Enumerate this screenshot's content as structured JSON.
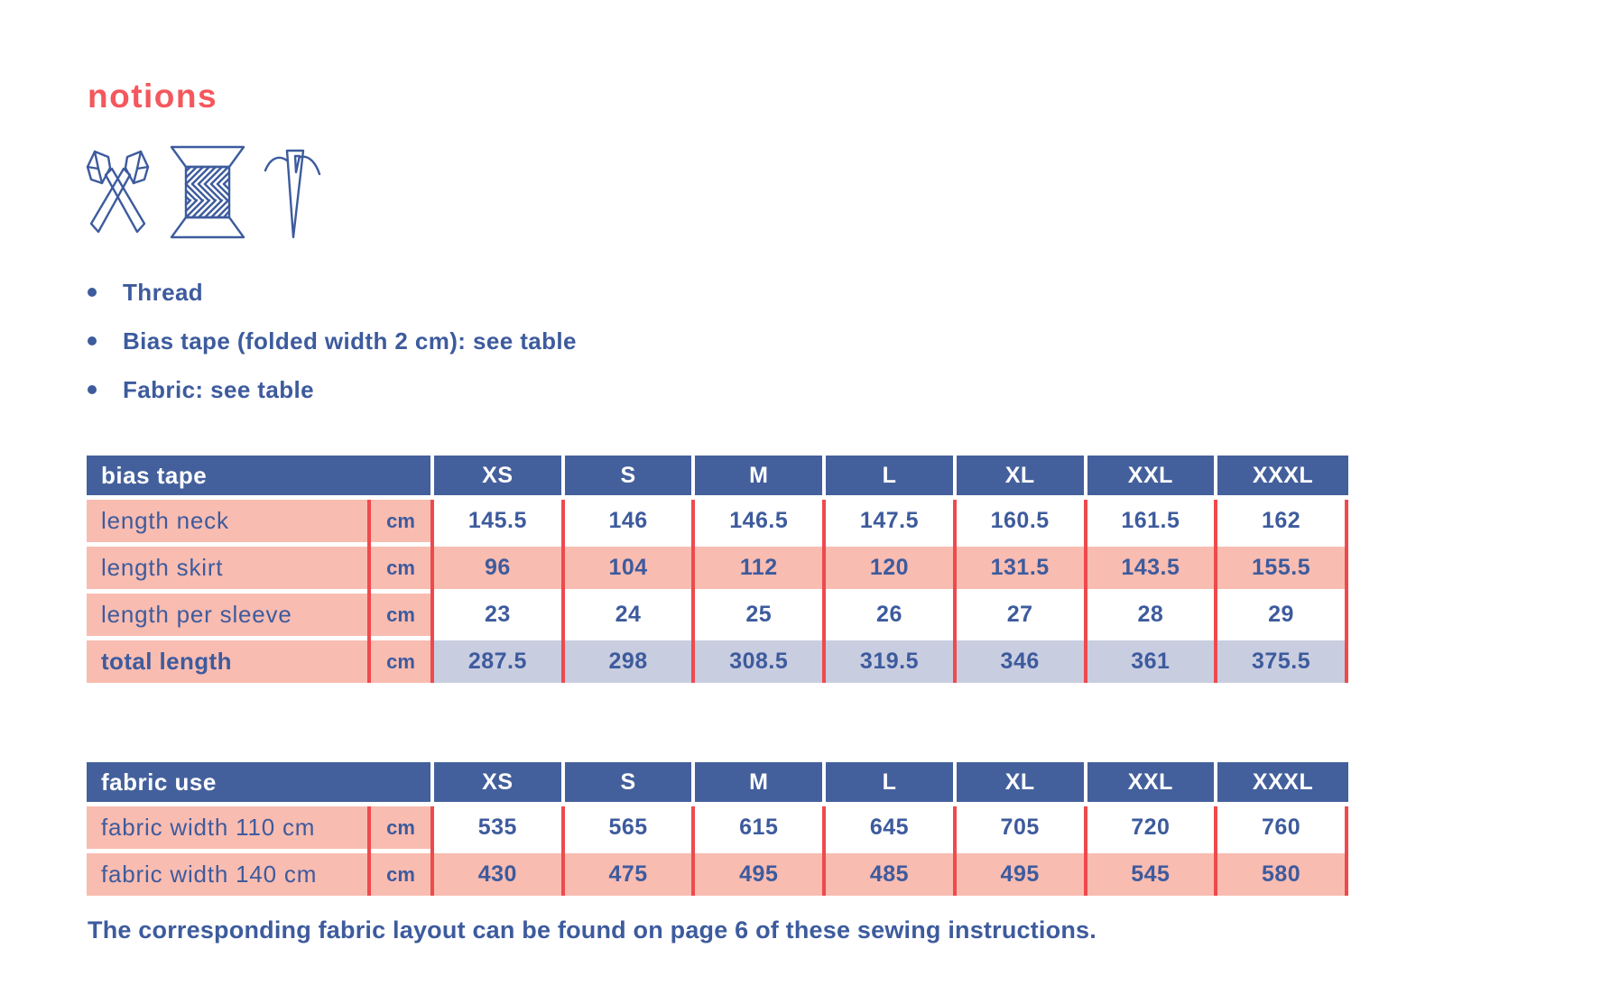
{
  "page": {
    "title": "notions",
    "bullets": [
      "Thread",
      "Bias tape (folded width 2 cm): see table",
      "Fabric: see table"
    ],
    "footer": "The corresponding fabric layout can be found on page 6 of these sewing instructions."
  },
  "icons": [
    {
      "name": "scissors-icon"
    },
    {
      "name": "thread-spool-icon"
    },
    {
      "name": "needle-thread-icon"
    }
  ],
  "colors": {
    "heading_coral": "#f4575c",
    "table_header_blue": "#44609c",
    "text_blue": "#3d5b9d",
    "row_pink": "#f9bcb1",
    "total_row_lavender": "#c9cde0",
    "divider_red": "#ee4a4e"
  },
  "tables": [
    {
      "title": "bias tape",
      "sizes": [
        "XS",
        "S",
        "M",
        "L",
        "XL",
        "XXL",
        "XXXL"
      ],
      "rows": [
        {
          "label": "length neck",
          "unit": "cm",
          "highlight": "plain",
          "bold_label": false,
          "values": [
            "145.5",
            "146",
            "146.5",
            "147.5",
            "160.5",
            "161.5",
            "162"
          ]
        },
        {
          "label": "length skirt",
          "unit": "cm",
          "highlight": "pink",
          "bold_label": false,
          "values": [
            "96",
            "104",
            "112",
            "120",
            "131.5",
            "143.5",
            "155.5"
          ]
        },
        {
          "label": "length per sleeve",
          "unit": "cm",
          "highlight": "plain",
          "bold_label": false,
          "values": [
            "23",
            "24",
            "25",
            "26",
            "27",
            "28",
            "29"
          ]
        },
        {
          "label": "total length",
          "unit": "cm",
          "highlight": "lavender",
          "bold_label": true,
          "values": [
            "287.5",
            "298",
            "308.5",
            "319.5",
            "346",
            "361",
            "375.5"
          ]
        }
      ]
    },
    {
      "title": "fabric use",
      "sizes": [
        "XS",
        "S",
        "M",
        "L",
        "XL",
        "XXL",
        "XXXL"
      ],
      "rows": [
        {
          "label": "fabric width 110 cm",
          "unit": "cm",
          "highlight": "plain",
          "bold_label": false,
          "values": [
            "535",
            "565",
            "615",
            "645",
            "705",
            "720",
            "760"
          ]
        },
        {
          "label": "fabric width 140 cm",
          "unit": "cm",
          "highlight": "pink",
          "bold_label": false,
          "values": [
            "430",
            "475",
            "495",
            "485",
            "495",
            "545",
            "580"
          ]
        }
      ]
    }
  ]
}
